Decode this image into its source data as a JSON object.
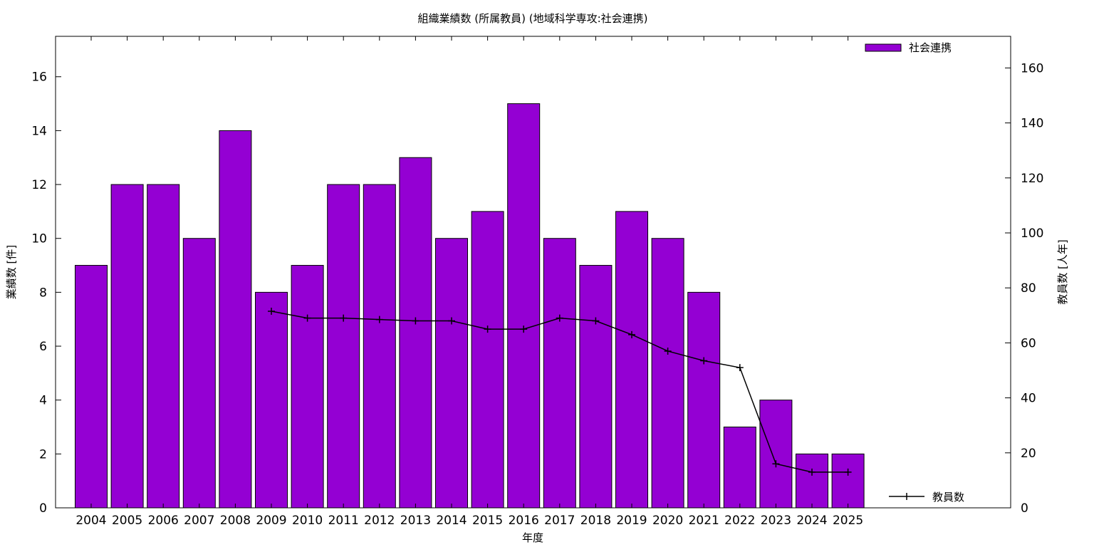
{
  "chart_data": {
    "type": "bar",
    "title": "組織業績数 (所属教員) (地域科学専攻:社会連携)",
    "xlabel": "年度",
    "ylabel": "業績数 [件]",
    "y2label": "教員数 [人年]",
    "categories": [
      "2004",
      "2005",
      "2006",
      "2007",
      "2008",
      "2009",
      "2010",
      "2011",
      "2012",
      "2013",
      "2014",
      "2015",
      "2016",
      "2017",
      "2018",
      "2019",
      "2020",
      "2021",
      "2022",
      "2023",
      "2024",
      "2025"
    ],
    "series": [
      {
        "name": "社会連携",
        "type": "bar",
        "axis": "left",
        "color": "#9400d3",
        "values": [
          9,
          12,
          12,
          10,
          14,
          8,
          9,
          12,
          12,
          13,
          10,
          11,
          15,
          10,
          9,
          11,
          10,
          8,
          3,
          4,
          2,
          2
        ]
      },
      {
        "name": "教員数",
        "type": "line",
        "axis": "right",
        "color": "#000000",
        "values": [
          null,
          null,
          null,
          null,
          null,
          71.5,
          69,
          69,
          68.5,
          68,
          68,
          65,
          65,
          69,
          68,
          63,
          57,
          53.5,
          51,
          16,
          13,
          13
        ]
      }
    ],
    "ylim": [
      0,
      17.5
    ],
    "y2lim": [
      0,
      171.5
    ],
    "yticks": [
      "0",
      "2",
      "4",
      "6",
      "8",
      "10",
      "12",
      "14",
      "16"
    ],
    "y2ticks": [
      "0",
      "20",
      "40",
      "60",
      "80",
      "100",
      "120",
      "140",
      "160"
    ],
    "grid": false,
    "legend_position": "top-right / bottom-right"
  }
}
